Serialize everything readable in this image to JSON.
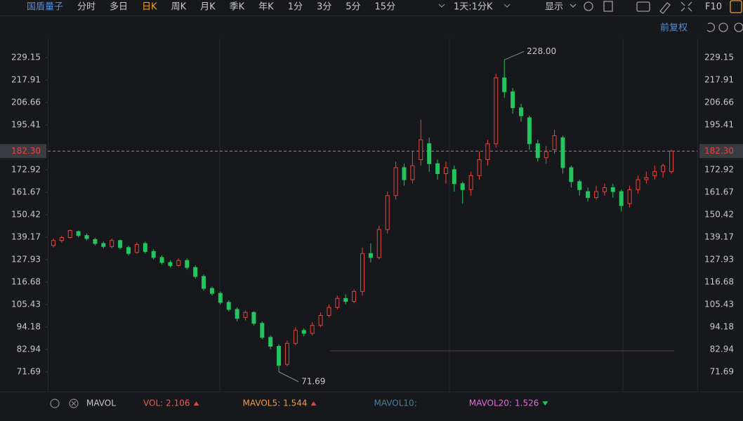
{
  "toolbar": {
    "stock_name": "国盾量子",
    "tabs": [
      {
        "label": "分时"
      },
      {
        "label": "多日"
      },
      {
        "label": "日K",
        "active": true
      },
      {
        "label": "周K"
      },
      {
        "label": "月K"
      },
      {
        "label": "季K"
      },
      {
        "label": "年K"
      },
      {
        "label": "1分"
      },
      {
        "label": "3分"
      },
      {
        "label": "5分"
      },
      {
        "label": "15分"
      }
    ],
    "period": "1天:1分K",
    "display": "显示",
    "f10": "F10",
    "adjust": "前复权"
  },
  "chart_data": {
    "type": "candlestick",
    "ylim": [
      62.55,
      236.2
    ],
    "yticks": [
      71.69,
      82.94,
      94.18,
      105.43,
      116.68,
      127.93,
      139.17,
      150.42,
      161.67,
      172.92,
      195.41,
      206.66,
      217.91,
      229.15
    ],
    "last_price": {
      "value": 182.3,
      "label": "182.30"
    },
    "up_color": "#e8433b",
    "down_color": "#22c55e",
    "open": [
      135,
      137.5,
      139,
      142,
      140,
      138,
      136,
      134.5,
      137.5,
      134,
      131.5,
      136,
      132,
      129,
      126.5,
      125,
      127.5,
      124,
      119.5,
      113.5,
      111,
      106.5,
      103,
      99,
      101.5,
      96,
      89,
      84.5,
      75.5,
      86,
      92.5,
      91,
      95,
      100,
      104,
      108.5,
      107,
      112,
      131,
      129,
      143,
      160,
      174,
      168,
      178,
      186,
      176,
      171,
      173,
      166,
      163,
      170,
      178,
      186,
      219,
      212,
      204,
      199,
      186,
      179,
      183,
      189,
      174,
      167,
      162,
      159,
      162,
      164,
      162,
      156,
      163,
      168,
      170,
      172,
      172
    ],
    "high": [
      138.5,
      140,
      143,
      142.5,
      141,
      139,
      137,
      138.5,
      138,
      135,
      136.5,
      137,
      133,
      130,
      127.5,
      128.5,
      128.5,
      125,
      120.5,
      114.5,
      112,
      107.5,
      104,
      102.5,
      102,
      97,
      90,
      85.5,
      87.5,
      94,
      93.5,
      96.5,
      101.5,
      105.5,
      110,
      110.5,
      113,
      134,
      136,
      145,
      162,
      177,
      176,
      182,
      198,
      189,
      178,
      177,
      175,
      167,
      172,
      182,
      188,
      221,
      228,
      214,
      206,
      200,
      188,
      185,
      193,
      190,
      175,
      168,
      164,
      165,
      166,
      166,
      163,
      165,
      170,
      172,
      175,
      176,
      183
    ],
    "low": [
      134,
      136.5,
      138.5,
      139,
      137.5,
      135,
      133.5,
      133.5,
      133,
      130,
      131,
      131,
      128,
      125.5,
      124,
      124.5,
      123,
      118.5,
      112.5,
      110,
      105.5,
      102,
      97,
      97.5,
      95,
      88,
      83,
      71.69,
      74.5,
      85,
      89.5,
      90,
      94,
      99,
      103,
      105.5,
      106,
      110,
      126.5,
      128,
      141,
      158,
      165,
      166,
      175,
      172,
      168,
      166,
      162,
      156,
      160,
      168,
      175,
      184,
      209,
      201,
      197,
      183,
      177,
      176,
      181,
      171,
      164,
      160,
      157,
      158,
      160,
      159,
      152,
      154,
      161,
      166,
      168,
      169,
      171
    ],
    "close": [
      137.5,
      139,
      142.5,
      140,
      138.5,
      136,
      134.5,
      137.5,
      134,
      131,
      135.5,
      132,
      129,
      126.5,
      125,
      127.5,
      124,
      119.5,
      113.5,
      111,
      106.5,
      103,
      98.5,
      101.5,
      96,
      89,
      84.5,
      75,
      86,
      92.5,
      91,
      95,
      100,
      104,
      108.5,
      107,
      112,
      131,
      129,
      143,
      160,
      174,
      168,
      175,
      188,
      176,
      171,
      174,
      166,
      163,
      170,
      178,
      186,
      219,
      212,
      204,
      200,
      186,
      179,
      182,
      190,
      174,
      167,
      163,
      159,
      162,
      164,
      162,
      155,
      163,
      168,
      169,
      172,
      175,
      182.3
    ],
    "annotations": [
      {
        "value": 228,
        "label": "228.00"
      },
      {
        "value": 71.69,
        "label": "71.69"
      }
    ]
  },
  "indicator": {
    "name": "MAVOL",
    "items": [
      {
        "name": "VOL:",
        "value": 2.106,
        "color": "#ef5a4f",
        "trend": "up"
      },
      {
        "name": "MAVOL5:",
        "value": 1.544,
        "color": "#f29a3c",
        "trend": "up"
      },
      {
        "name": "MAVOL10:",
        "value": null,
        "color": "#4b7d9c"
      },
      {
        "name": "MAVOL20:",
        "value": 1.526,
        "color": "#e46ad8",
        "trend": "down"
      }
    ]
  }
}
